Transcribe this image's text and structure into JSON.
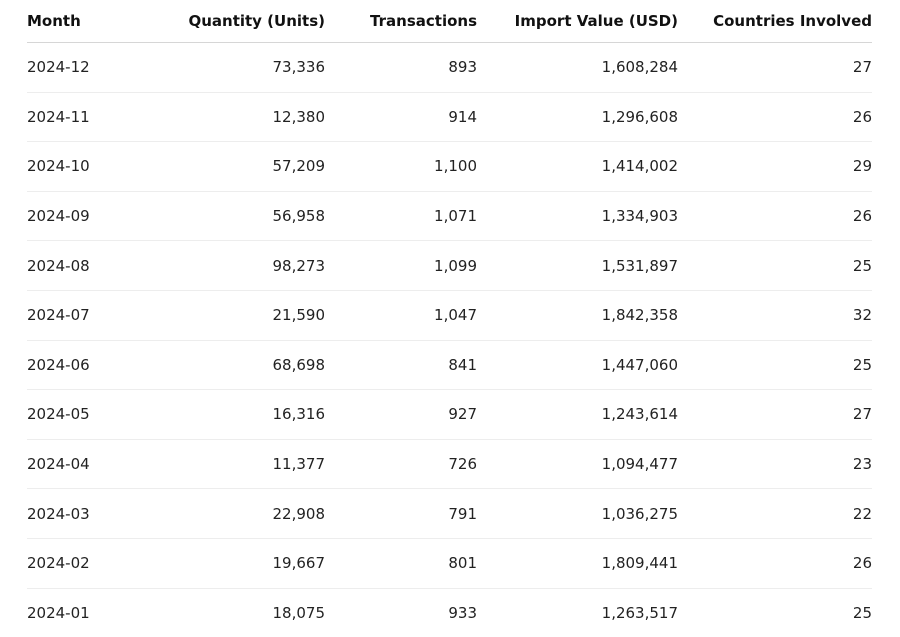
{
  "table": {
    "columns": [
      "Month",
      "Quantity (Units)",
      "Transactions",
      "Import Value (USD)",
      "Countries Involved"
    ],
    "rows": [
      [
        "2024-12",
        "73,336",
        "893",
        "1,608,284",
        "27"
      ],
      [
        "2024-11",
        "12,380",
        "914",
        "1,296,608",
        "26"
      ],
      [
        "2024-10",
        "57,209",
        "1,100",
        "1,414,002",
        "29"
      ],
      [
        "2024-09",
        "56,958",
        "1,071",
        "1,334,903",
        "26"
      ],
      [
        "2024-08",
        "98,273",
        "1,099",
        "1,531,897",
        "25"
      ],
      [
        "2024-07",
        "21,590",
        "1,047",
        "1,842,358",
        "32"
      ],
      [
        "2024-06",
        "68,698",
        "841",
        "1,447,060",
        "25"
      ],
      [
        "2024-05",
        "16,316",
        "927",
        "1,243,614",
        "27"
      ],
      [
        "2024-04",
        "11,377",
        "726",
        "1,094,477",
        "23"
      ],
      [
        "2024-03",
        "22,908",
        "791",
        "1,036,275",
        "22"
      ],
      [
        "2024-02",
        "19,667",
        "801",
        "1,809,441",
        "26"
      ],
      [
        "2024-01",
        "18,075",
        "933",
        "1,263,517",
        "25"
      ]
    ]
  }
}
